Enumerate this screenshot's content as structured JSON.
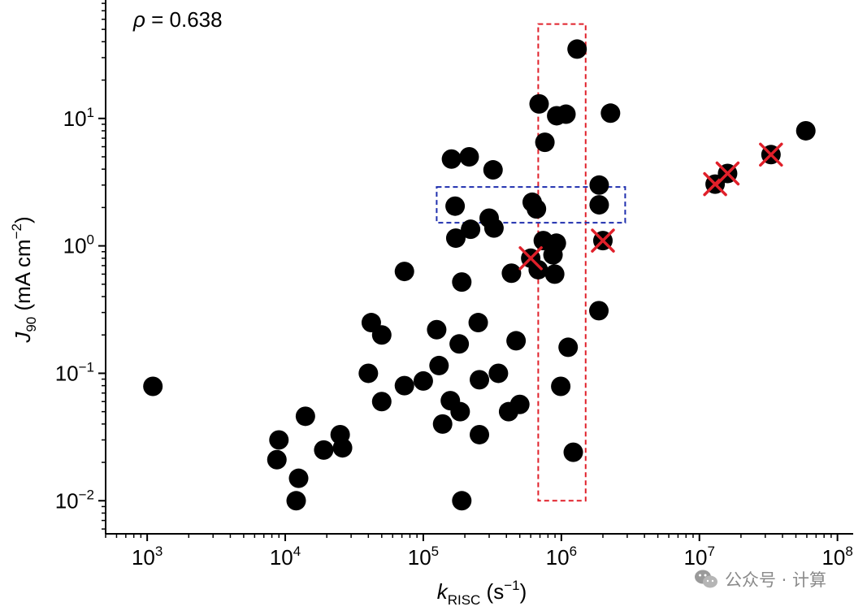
{
  "chart_data": {
    "type": "scatter",
    "xscale": "log",
    "yscale": "log",
    "xlabel": {
      "main": "k",
      "sub": "RISC",
      "rest": " (s",
      "sup": "−1",
      "end": ")"
    },
    "ylabel": {
      "main": "J",
      "sub": "90",
      "rest": " (mA cm",
      "sup": "−2",
      "end": ")"
    },
    "xlim": [
      500,
      130000000
    ],
    "ylim": [
      0.0055,
      85
    ],
    "x_ticks": [
      {
        "base": "10",
        "exp": "3"
      },
      {
        "base": "10",
        "exp": "4"
      },
      {
        "base": "10",
        "exp": "5"
      },
      {
        "base": "10",
        "exp": "6"
      },
      {
        "base": "10",
        "exp": "7"
      },
      {
        "base": "10",
        "exp": "8"
      }
    ],
    "y_ticks": [
      {
        "base": "10",
        "exp": "−2"
      },
      {
        "base": "10",
        "exp": "−1"
      },
      {
        "base": "10",
        "exp": "0"
      },
      {
        "base": "10",
        "exp": "1"
      }
    ],
    "annotation": {
      "symbol": "ρ",
      "text": " = 0.638",
      "value": 0.638
    },
    "points": [
      {
        "x": 1100,
        "y": 0.079
      },
      {
        "x": 9000,
        "y": 0.03
      },
      {
        "x": 8700,
        "y": 0.021
      },
      {
        "x": 12500,
        "y": 0.015
      },
      {
        "x": 12000,
        "y": 0.01
      },
      {
        "x": 14000,
        "y": 0.046
      },
      {
        "x": 19000,
        "y": 0.025
      },
      {
        "x": 25000,
        "y": 0.033
      },
      {
        "x": 26000,
        "y": 0.026
      },
      {
        "x": 40000,
        "y": 0.1
      },
      {
        "x": 42000,
        "y": 0.25
      },
      {
        "x": 50000,
        "y": 0.2
      },
      {
        "x": 50000,
        "y": 0.06
      },
      {
        "x": 73000,
        "y": 0.08
      },
      {
        "x": 73000,
        "y": 0.63
      },
      {
        "x": 100000,
        "y": 0.087
      },
      {
        "x": 125000,
        "y": 0.22
      },
      {
        "x": 130000,
        "y": 0.115
      },
      {
        "x": 138000,
        "y": 0.04
      },
      {
        "x": 157000,
        "y": 0.061
      },
      {
        "x": 185000,
        "y": 0.05
      },
      {
        "x": 182000,
        "y": 0.17
      },
      {
        "x": 190000,
        "y": 0.52
      },
      {
        "x": 172000,
        "y": 1.15
      },
      {
        "x": 170000,
        "y": 2.05
      },
      {
        "x": 160000,
        "y": 4.8
      },
      {
        "x": 215000,
        "y": 5.0
      },
      {
        "x": 190000,
        "y": 0.01
      },
      {
        "x": 220000,
        "y": 1.35
      },
      {
        "x": 250000,
        "y": 0.25
      },
      {
        "x": 255000,
        "y": 0.089
      },
      {
        "x": 255000,
        "y": 0.033
      },
      {
        "x": 300000,
        "y": 1.65
      },
      {
        "x": 325000,
        "y": 1.38
      },
      {
        "x": 320000,
        "y": 3.95
      },
      {
        "x": 350000,
        "y": 0.1
      },
      {
        "x": 415000,
        "y": 0.05
      },
      {
        "x": 435000,
        "y": 0.61
      },
      {
        "x": 470000,
        "y": 0.18
      },
      {
        "x": 500000,
        "y": 0.057
      },
      {
        "x": 615000,
        "y": 2.2
      },
      {
        "x": 660000,
        "y": 1.95
      },
      {
        "x": 690000,
        "y": 13.0
      },
      {
        "x": 680000,
        "y": 0.65
      },
      {
        "x": 760000,
        "y": 6.5
      },
      {
        "x": 740000,
        "y": 1.1
      },
      {
        "x": 870000,
        "y": 0.85
      },
      {
        "x": 920000,
        "y": 1.05
      },
      {
        "x": 895000,
        "y": 0.6
      },
      {
        "x": 925000,
        "y": 10.5
      },
      {
        "x": 1080000,
        "y": 10.8
      },
      {
        "x": 1300000,
        "y": 35.0
      },
      {
        "x": 990000,
        "y": 0.079
      },
      {
        "x": 1120000,
        "y": 0.16
      },
      {
        "x": 1220000,
        "y": 0.024
      },
      {
        "x": 1880000,
        "y": 3.0
      },
      {
        "x": 1880000,
        "y": 2.1
      },
      {
        "x": 1870000,
        "y": 0.31
      },
      {
        "x": 2270000,
        "y": 11.0
      },
      {
        "x": 59000000,
        "y": 8.0
      }
    ],
    "crossed_points": [
      {
        "x": 600000,
        "y": 0.8
      },
      {
        "x": 2000000,
        "y": 1.1
      },
      {
        "x": 13000000,
        "y": 3.05
      },
      {
        "x": 16000000,
        "y": 3.7
      },
      {
        "x": 33000000,
        "y": 5.2
      }
    ],
    "highlight_boxes": [
      {
        "name": "red-dashed-box",
        "color": "#e0202a",
        "x": [
          680000,
          1500000
        ],
        "y": [
          0.01,
          55
        ]
      },
      {
        "name": "blue-dashed-box",
        "color": "#1f2fae",
        "x": [
          125000,
          2900000
        ],
        "y": [
          1.52,
          2.9
        ]
      }
    ],
    "marker_color": "#000000",
    "cross_color": "#e0202a"
  },
  "watermark": {
    "text": "公众号 · 计算"
  }
}
